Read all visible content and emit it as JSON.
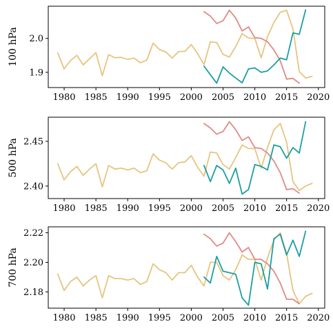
{
  "chart_data": [
    {
      "type": "line",
      "ylabel": "100 hPa",
      "xlim": [
        1977.5,
        2021.0
      ],
      "ylim": [
        1.855,
        2.095
      ],
      "xticks": [
        1980,
        1985,
        1990,
        1995,
        2000,
        2005,
        2010,
        2015,
        2020
      ],
      "yticks": [
        1.9,
        2.0
      ],
      "ytick_labels": [
        "1.9",
        "2.0"
      ],
      "grid": false,
      "series": [
        {
          "color": "#e6c47f",
          "x": [
            1979,
            1980,
            1981,
            1982,
            1983,
            1984,
            1985,
            1986,
            1987,
            1988,
            1989,
            1990,
            1991,
            1992,
            1993,
            1994,
            1995,
            1996,
            1997,
            1998,
            1999,
            2000,
            2001,
            2002,
            2003,
            2004,
            2005,
            2006,
            2007,
            2008,
            2009,
            2010,
            2011,
            2012,
            2013,
            2014,
            2015,
            2016,
            2017,
            2018,
            2019
          ],
          "y": [
            1.957,
            1.91,
            1.935,
            1.95,
            1.922,
            1.94,
            1.958,
            1.89,
            1.952,
            1.943,
            1.944,
            1.938,
            1.942,
            1.928,
            1.936,
            1.986,
            1.967,
            1.96,
            1.942,
            1.961,
            1.962,
            1.982,
            1.955,
            1.923,
            1.99,
            1.988,
            1.953,
            1.945,
            1.976,
            2.014,
            2.001,
            2.0,
            1.943,
            2.005,
            2.047,
            2.077,
            2.083,
            2.028,
            1.902,
            1.883,
            1.888
          ]
        },
        {
          "color": "#e08a85",
          "x": [
            2002,
            2003,
            2004,
            2005,
            2006,
            2007,
            2008,
            2009,
            2010,
            2011,
            2012,
            2013,
            2014,
            2015,
            2016,
            2017
          ],
          "y": [
            2.079,
            2.066,
            2.044,
            2.052,
            2.083,
            2.06,
            2.022,
            2.034,
            2.002,
            2.0,
            1.99,
            1.966,
            1.934,
            1.88,
            1.882,
            1.868
          ]
        },
        {
          "color": "#1a9ea0",
          "x": [
            2002,
            2003,
            2004,
            2005,
            2006,
            2007,
            2008,
            2009,
            2010,
            2011,
            2012,
            2013,
            2014,
            2015,
            2016,
            2017,
            2018
          ],
          "y": [
            1.918,
            1.893,
            1.868,
            1.916,
            1.898,
            1.883,
            1.869,
            1.91,
            1.913,
            1.9,
            1.904,
            1.922,
            1.942,
            1.937,
            2.016,
            2.012,
            2.084
          ]
        }
      ]
    },
    {
      "type": "line",
      "ylabel": "500 hPa",
      "xlim": [
        1977.5,
        2021.0
      ],
      "ylim": [
        2.386,
        2.477
      ],
      "xticks": [
        1980,
        1985,
        1990,
        1995,
        2000,
        2005,
        2010,
        2015,
        2020
      ],
      "yticks": [
        2.4,
        2.45
      ],
      "ytick_labels": [
        "2.40",
        "2.45"
      ],
      "grid": false,
      "series": [
        {
          "color": "#e6c47f",
          "x": [
            1979,
            1980,
            1981,
            1982,
            1983,
            1984,
            1985,
            1986,
            1987,
            1988,
            1989,
            1990,
            1991,
            1992,
            1993,
            1994,
            1995,
            1996,
            1997,
            1998,
            1999,
            2000,
            2001,
            2002,
            2003,
            2004,
            2005,
            2006,
            2007,
            2008,
            2009,
            2010,
            2011,
            2012,
            2013,
            2014,
            2015,
            2016,
            2017,
            2018,
            2019
          ],
          "y": [
            2.425,
            2.407,
            2.416,
            2.422,
            2.412,
            2.419,
            2.425,
            2.399,
            2.423,
            2.419,
            2.42,
            2.418,
            2.42,
            2.415,
            2.417,
            2.436,
            2.429,
            2.426,
            2.419,
            2.426,
            2.427,
            2.434,
            2.421,
            2.411,
            2.438,
            2.437,
            2.424,
            2.419,
            2.432,
            2.446,
            2.442,
            2.442,
            2.42,
            2.443,
            2.463,
            2.47,
            2.449,
            2.405,
            2.395,
            2.4,
            2.403
          ]
        },
        {
          "color": "#e08a85",
          "x": [
            2002,
            2003,
            2004,
            2005,
            2006,
            2007,
            2008,
            2009,
            2010,
            2011,
            2012,
            2013,
            2014,
            2015,
            2016,
            2017
          ],
          "y": [
            2.47,
            2.465,
            2.458,
            2.461,
            2.472,
            2.463,
            2.451,
            2.455,
            2.443,
            2.442,
            2.437,
            2.428,
            2.415,
            2.396,
            2.397,
            2.392
          ]
        },
        {
          "color": "#1a9ea0",
          "x": [
            2002,
            2003,
            2004,
            2005,
            2006,
            2007,
            2008,
            2009,
            2010,
            2011,
            2012,
            2013,
            2014,
            2015,
            2016,
            2017,
            2018
          ],
          "y": [
            2.423,
            2.405,
            2.423,
            2.418,
            2.403,
            2.42,
            2.391,
            2.396,
            2.424,
            2.422,
            2.418,
            2.446,
            2.444,
            2.431,
            2.443,
            2.437,
            2.472
          ]
        }
      ]
    },
    {
      "type": "line",
      "ylabel": "700 hPa",
      "xlim": [
        1977.5,
        2021.0
      ],
      "ylim": [
        2.169,
        2.224
      ],
      "xticks": [
        1980,
        1985,
        1990,
        1995,
        2000,
        2005,
        2010,
        2015,
        2020
      ],
      "yticks": [
        2.18,
        2.2,
        2.22
      ],
      "ytick_labels": [
        "2.18",
        "2.20",
        "2.22"
      ],
      "grid": false,
      "series": [
        {
          "color": "#e6c47f",
          "x": [
            1979,
            1980,
            1981,
            1982,
            1983,
            1984,
            1985,
            1986,
            1987,
            1988,
            1989,
            1990,
            1991,
            1992,
            1993,
            1994,
            1995,
            1996,
            1997,
            1998,
            1999,
            2000,
            2001,
            2002,
            2003,
            2004,
            2005,
            2006,
            2007,
            2008,
            2009,
            2010,
            2011,
            2012,
            2013,
            2014,
            2015,
            2016,
            2017,
            2018,
            2019
          ],
          "y": [
            2.192,
            2.181,
            2.187,
            2.19,
            2.184,
            2.188,
            2.191,
            2.176,
            2.191,
            2.189,
            2.189,
            2.188,
            2.189,
            2.185,
            2.187,
            2.199,
            2.195,
            2.193,
            2.188,
            2.193,
            2.193,
            2.198,
            2.19,
            2.184,
            2.2,
            2.2,
            2.191,
            2.188,
            2.195,
            2.205,
            2.202,
            2.202,
            2.188,
            2.203,
            2.215,
            2.22,
            2.206,
            2.181,
            2.172,
            2.177,
            2.179
          ]
        },
        {
          "color": "#e08a85",
          "x": [
            2002,
            2003,
            2004,
            2005,
            2006,
            2007,
            2008,
            2009,
            2010,
            2011,
            2012,
            2013,
            2014,
            2015,
            2016,
            2017
          ],
          "y": [
            2.219,
            2.216,
            2.211,
            2.213,
            2.22,
            2.214,
            2.207,
            2.21,
            2.202,
            2.202,
            2.199,
            2.194,
            2.186,
            2.175,
            2.175,
            2.172
          ]
        },
        {
          "color": "#1a9ea0",
          "x": [
            2002,
            2003,
            2004,
            2005,
            2006,
            2007,
            2008,
            2009,
            2010,
            2011,
            2012,
            2013,
            2014,
            2015,
            2016,
            2017,
            2018
          ],
          "y": [
            2.19,
            2.186,
            2.204,
            2.194,
            2.193,
            2.192,
            2.176,
            2.171,
            2.2,
            2.199,
            2.182,
            2.216,
            2.219,
            2.205,
            2.215,
            2.204,
            2.221
          ]
        }
      ]
    }
  ]
}
